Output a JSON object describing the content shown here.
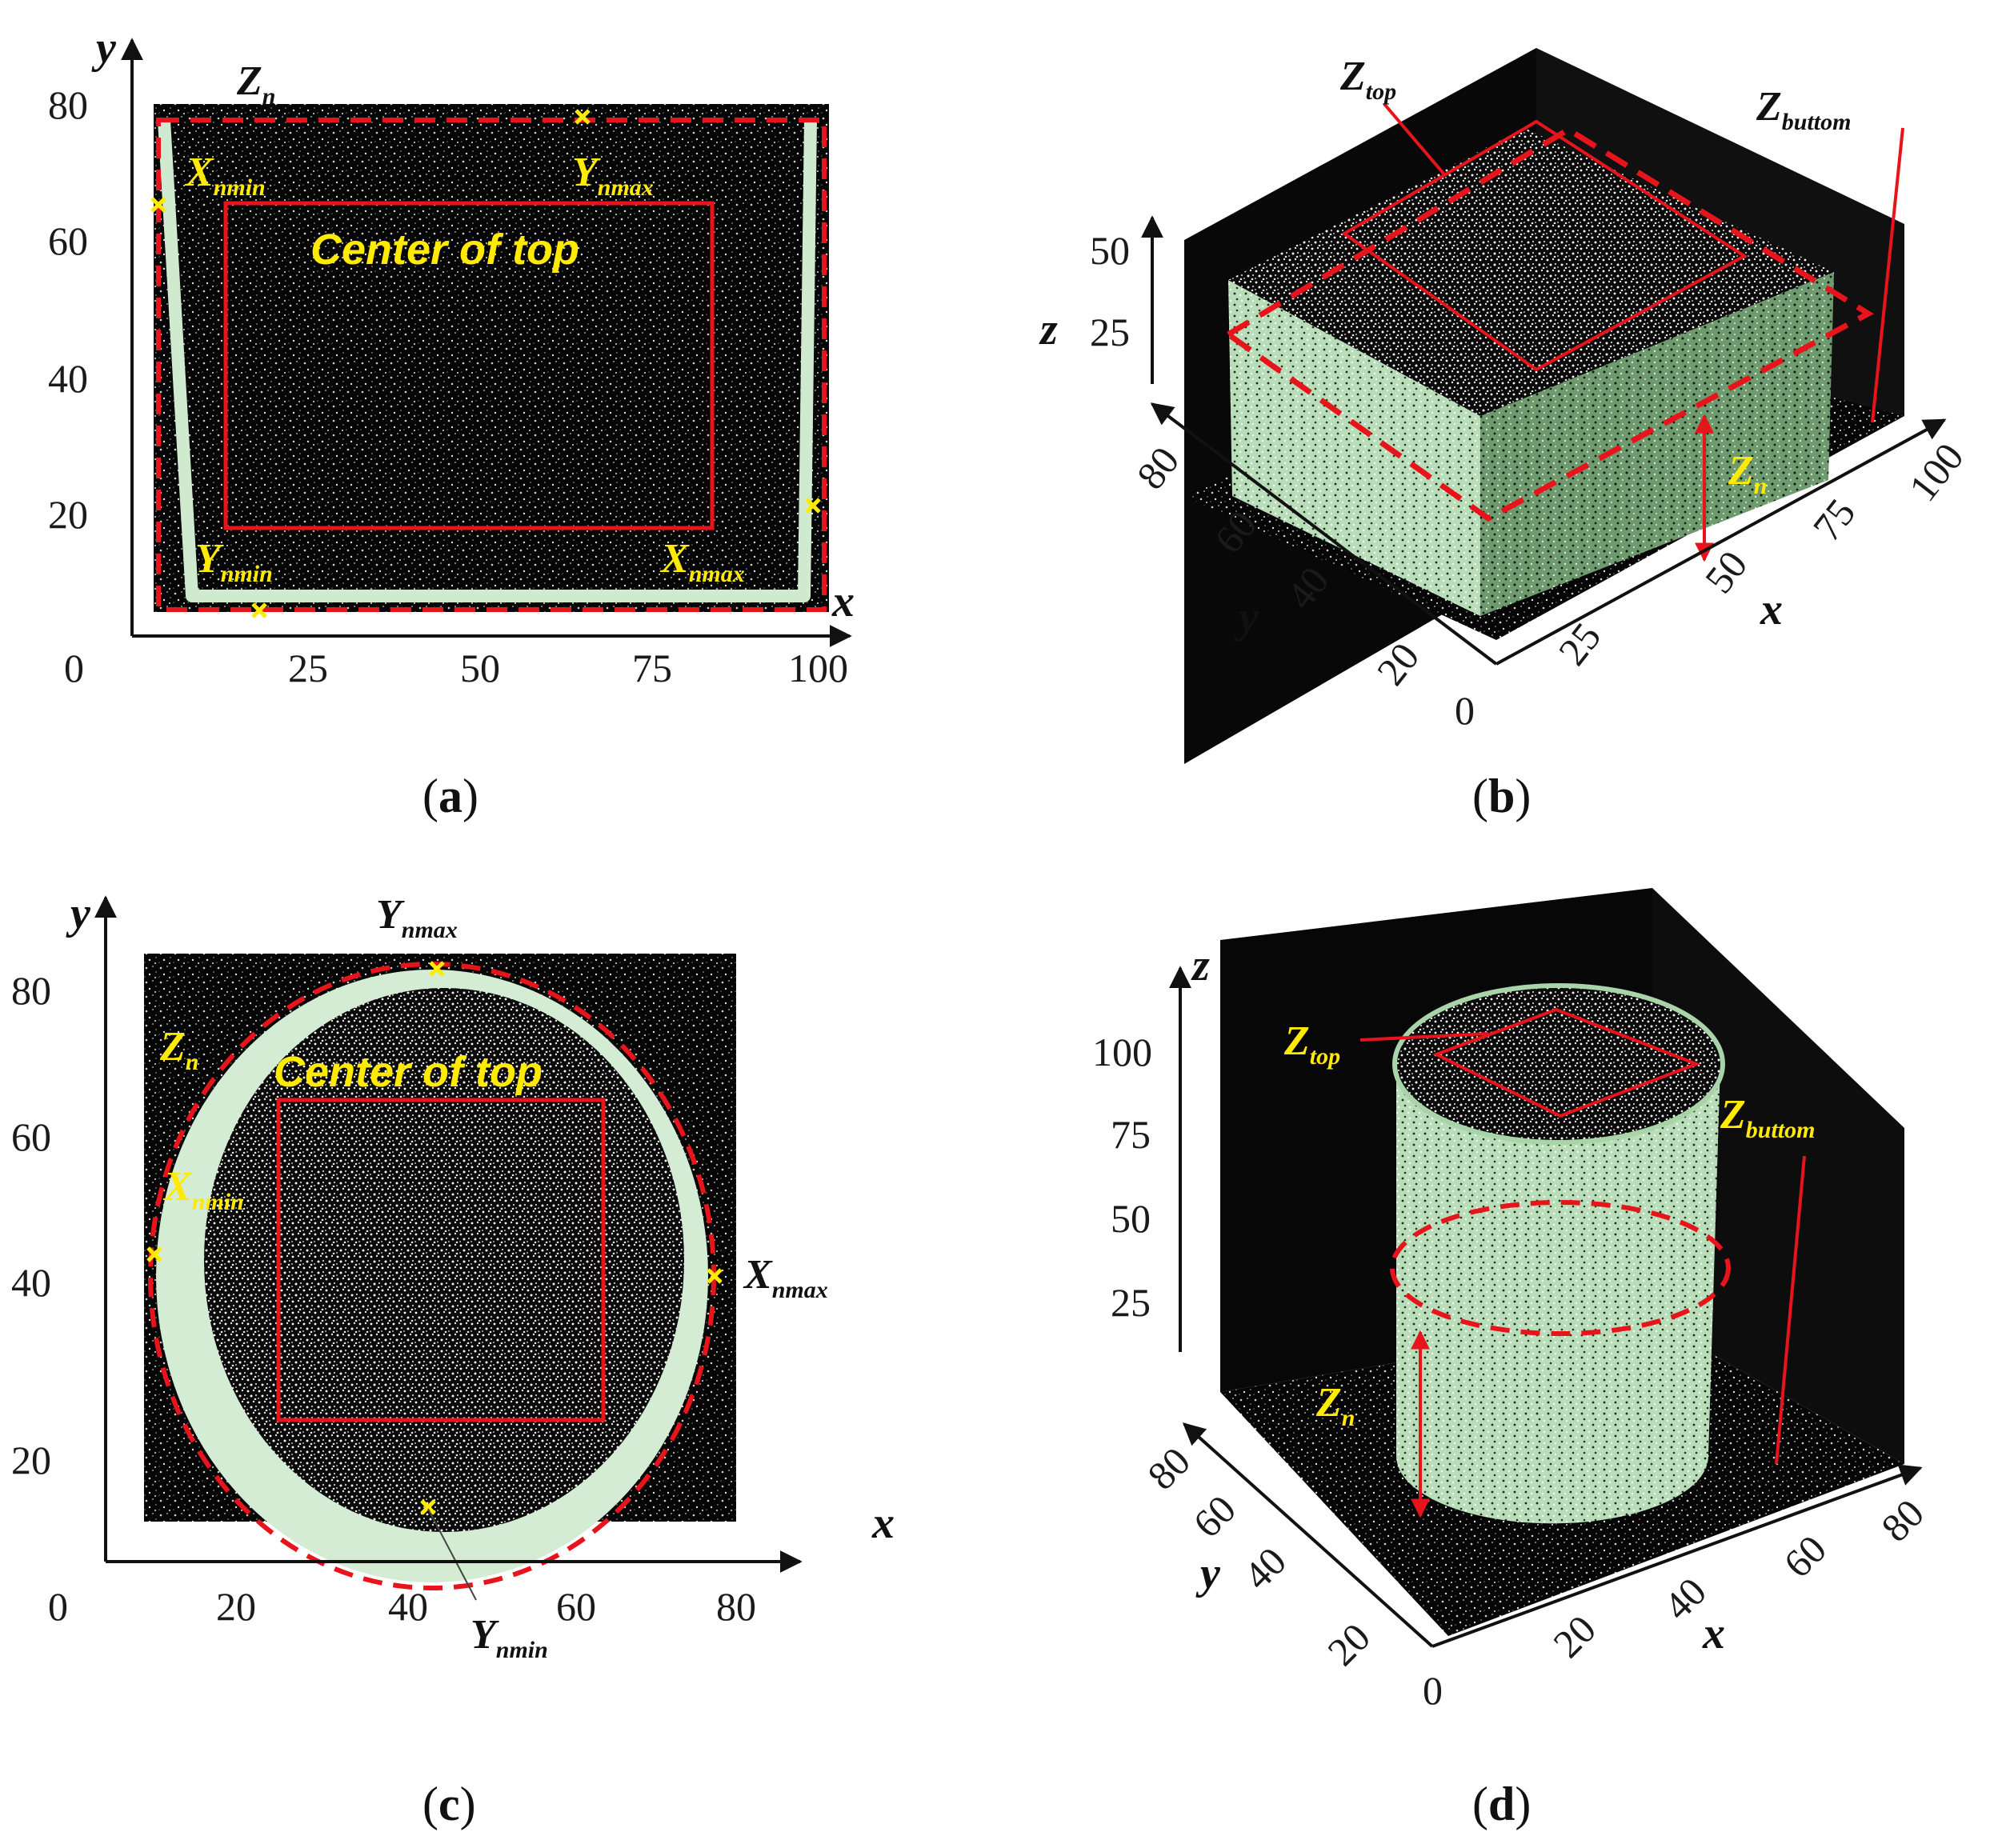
{
  "panels": {
    "a": {
      "caption_letter": "a",
      "x_ticks": [
        "0",
        "25",
        "50",
        "75",
        "100"
      ],
      "y_ticks": [
        "20",
        "40",
        "60",
        "80"
      ],
      "x_axis": "x",
      "y_axis": "y",
      "zn": {
        "base": "Z",
        "sub": "n"
      },
      "xnmin": {
        "base": "X",
        "sub": "nmin"
      },
      "ynmax": {
        "base": "Y",
        "sub": "nmax"
      },
      "ynmin": {
        "base": "Y",
        "sub": "nmin"
      },
      "xnmax": {
        "base": "X",
        "sub": "nmax"
      },
      "center_label": "Center of top"
    },
    "b": {
      "caption_letter": "b",
      "z_ticks": [
        "25",
        "50"
      ],
      "y_ticks": [
        "0",
        "20",
        "40",
        "60",
        "80"
      ],
      "x_ticks": [
        "25",
        "50",
        "75",
        "100"
      ],
      "x_axis": "x",
      "y_axis": "y",
      "z_axis": "z",
      "ztop": {
        "base": "Z",
        "sub": "top"
      },
      "zbuttom": {
        "base": "Z",
        "sub": "buttom"
      },
      "zn": {
        "base": "Z",
        "sub": "n"
      }
    },
    "c": {
      "caption_letter": "c",
      "x_ticks": [
        "0",
        "20",
        "40",
        "60",
        "80"
      ],
      "y_ticks": [
        "20",
        "40",
        "60",
        "80"
      ],
      "x_axis": "x",
      "y_axis": "y",
      "zn": {
        "base": "Z",
        "sub": "n"
      },
      "xnmin": {
        "base": "X",
        "sub": "nmin"
      },
      "ynmax": {
        "base": "Y",
        "sub": "nmax"
      },
      "ynmin": {
        "base": "Y",
        "sub": "nmin"
      },
      "xnmax": {
        "base": "X",
        "sub": "nmax"
      },
      "center_label": "Center of top"
    },
    "d": {
      "caption_letter": "d",
      "z_ticks": [
        "25",
        "50",
        "75",
        "100"
      ],
      "y_ticks": [
        "0",
        "20",
        "40",
        "60",
        "80"
      ],
      "x_ticks": [
        "20",
        "40",
        "60",
        "80"
      ],
      "x_axis": "x",
      "y_axis": "y",
      "z_axis": "z",
      "ztop": {
        "base": "Z",
        "sub": "top"
      },
      "zbuttom": {
        "base": "Z",
        "sub": "buttom"
      },
      "zn": {
        "base": "Z",
        "sub": "n"
      }
    }
  },
  "colors": {
    "annotation_red": "#e8141c",
    "label_yellow": "#ffea00",
    "cloud_white": "#f2f2f2",
    "cloud_green": "#cfeacf",
    "background_black": "#050505"
  }
}
